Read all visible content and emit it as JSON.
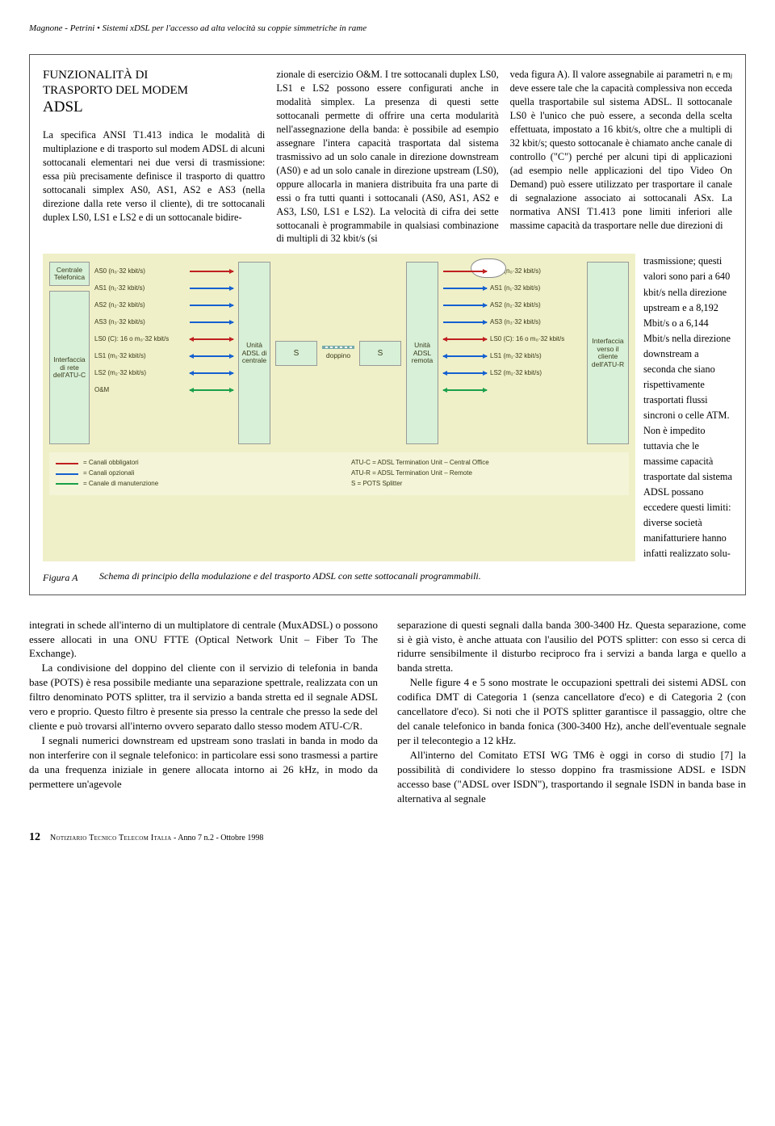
{
  "running_head": "Magnone - Petrini • Sistemi xDSL per l'accesso ad alta velocità su coppie simmetriche in rame",
  "sidebar": {
    "title_line1": "FUNZIONALITÀ DI",
    "title_line2": "TRASPORTO DEL MODEM",
    "title_line3": "ADSL"
  },
  "feature": {
    "col1": "La specifica ANSI T1.413 indica le modalità di multiplazione e di trasporto sul modem ADSL di alcuni sottocanali elementari nei due versi di trasmissione: essa più precisamente definisce il trasporto di quattro sottocanali simplex AS0, AS1, AS2 e AS3 (nella direzione dalla rete verso il cliente), di tre sottocanali duplex LS0, LS1 e LS2 e di un sottocanale bidire-",
    "col2": "zionale di esercizio O&M. I tre sottocanali duplex LS0, LS1 e LS2 possono essere configurati anche in modalità simplex. La presenza di questi sette sottocanali permette di offrire una certa modularità nell'assegnazione della banda: è possibile ad esempio assegnare l'intera capacità trasportata dal sistema trasmissivo ad un solo canale in direzione downstream (AS0) e ad un solo canale in direzione upstream (LS0), oppure allocarla in maniera distribuita fra una parte di essi o fra tutti quanti i sottocanali (AS0, AS1, AS2 e AS3, LS0, LS1 e LS2). La velocità di cifra dei sette sottocanali è programmabile in qualsiasi combinazione di multipli di 32 kbit/s (si",
    "col3": "veda figura A). Il valore assegnabile ai parametri nᵢ e mⱼ deve essere tale che la capacità complessiva non ecceda quella trasportabile sul sistema ADSL. Il sottocanale LS0 è l'unico che può essere, a seconda della scelta effettuata, impostato a 16 kbit/s, oltre che a multipli di 32 kbit/s; questo sottocanale è chiamato anche canale di controllo (\"C\") perché per alcuni tipi di applicazioni (ad esempio nelle applicazioni del tipo Video On Demand) può essere utilizzato per trasportare il canale di segnalazione associato ai sottocanali ASx.\nLa normativa ANSI T1.413 pone limiti inferiori alle massime capacità da trasportare nelle due direzioni di",
    "narrow": "trasmissione; questi valori sono pari a 640 kbit/s nella direzione upstream e a 8,192 Mbit/s o a 6,144 Mbit/s nella direzione downstream a seconda che siano rispettivamente trasportati flussi sincroni o celle ATM.\nNon è impedito tuttavia che le massime capacità trasportate dal sistema ADSL possano eccedere questi limiti: diverse società manifatturiere hanno infatti realizzato solu-"
  },
  "figure": {
    "label": "Figura A",
    "caption": "Schema di principio della modulazione e del trasporto ADSL con sette sottocanali programmabili."
  },
  "diagram": {
    "bg_color": "#eff0c8",
    "box_bg": "#d7f0d7",
    "colors": {
      "mandatory": "#c02020",
      "optional": "#1560d0",
      "oam": "#1aa04a"
    },
    "left_box_top": "Centrale Telefonica",
    "left_box_side": "Interfaccia di rete dell'ATU-C",
    "unit_c": "Unità ADSL di centrale",
    "s_label": "S",
    "doppino": "doppino",
    "unit_r": "Unità ADSL remota",
    "right_box_side": "Interfaccia verso il cliente dell'ATU-R",
    "channels_left": [
      {
        "label": "AS0 (n₀·32 kbit/s)",
        "color": "mandatory",
        "dir": "r"
      },
      {
        "label": "AS1 (n₁·32 kbit/s)",
        "color": "optional",
        "dir": "r"
      },
      {
        "label": "AS2 (n₂·32 kbit/s)",
        "color": "optional",
        "dir": "r"
      },
      {
        "label": "AS3 (n₃·32 kbit/s)",
        "color": "optional",
        "dir": "r"
      },
      {
        "label": "LS0 (C): 16 o m₀·32 kbit/s",
        "color": "mandatory",
        "dir": "b"
      },
      {
        "label": "LS1 (m₁·32 kbit/s)",
        "color": "optional",
        "dir": "b"
      },
      {
        "label": "LS2 (m₂·32 kbit/s)",
        "color": "optional",
        "dir": "b"
      },
      {
        "label": "O&M",
        "color": "oam",
        "dir": "b"
      }
    ],
    "channels_right": [
      {
        "label": "AS0 (n₀·32 kbit/s)",
        "color": "mandatory",
        "dir": "r"
      },
      {
        "label": "AS1 (n₁·32 kbit/s)",
        "color": "optional",
        "dir": "r"
      },
      {
        "label": "AS2 (n₂·32 kbit/s)",
        "color": "optional",
        "dir": "r"
      },
      {
        "label": "AS3 (n₃·32 kbit/s)",
        "color": "optional",
        "dir": "r"
      },
      {
        "label": "LS0 (C): 16 o m₀·32 kbit/s",
        "color": "mandatory",
        "dir": "b"
      },
      {
        "label": "LS1 (m₁·32 kbit/s)",
        "color": "optional",
        "dir": "b"
      },
      {
        "label": "LS2 (m₂·32 kbit/s)",
        "color": "optional",
        "dir": "b"
      },
      {
        "label": "",
        "color": "oam",
        "dir": "b"
      }
    ],
    "legend_left": [
      {
        "swatch": "mandatory",
        "text": "= Canali obbligatori"
      },
      {
        "swatch": "optional",
        "text": "= Canali opzionali"
      },
      {
        "swatch": "oam",
        "text": "= Canale di manutenzione"
      }
    ],
    "legend_right": [
      {
        "text": "ATU-C = ADSL Termination Unit – Central Office"
      },
      {
        "text": "ATU-R = ADSL Termination Unit – Remote"
      },
      {
        "text": "S       = POTS Splitter"
      }
    ]
  },
  "body": {
    "left": [
      "integrati in schede all'interno di un multiplatore di centrale (MuxADSL) o possono essere allocati in una ONU FTTE (Optical Network Unit – Fiber To The Exchange).",
      "La condivisione del doppino del cliente con il servizio di telefonia in banda base (POTS) è resa possibile mediante una separazione spettrale, realizzata con un filtro denominato POTS splitter, tra il servizio a banda stretta ed il segnale ADSL vero e proprio. Questo filtro è presente sia presso la centrale che presso la sede del cliente e può trovarsi all'interno ovvero separato dallo stesso modem ATU-C/R.",
      "I segnali numerici downstream ed upstream sono traslati in banda in modo da non interferire con il segnale telefonico: in particolare essi sono trasmessi a partire da una frequenza iniziale in genere allocata intorno ai 26 kHz, in modo da permettere un'agevole"
    ],
    "right": [
      "separazione di questi segnali dalla banda 300-3400 Hz. Questa separazione, come si è già visto, è anche attuata con l'ausilio del POTS splitter: con esso si cerca di ridurre sensibilmente il disturbo reciproco fra i servizi a banda larga e quello a banda stretta.",
      "Nelle figure 4 e 5 sono mostrate le occupazioni spettrali dei sistemi ADSL con codifica DMT di Categoria 1 (senza cancellatore d'eco) e di Categoria 2 (con cancellatore d'eco). Si noti che il POTS splitter garantisce il passaggio, oltre che del canale telefonico in banda fonica (300-3400 Hz), anche dell'eventuale segnale per il telecontegio a 12 kHz.",
      "All'interno del Comitato ETSI WG TM6 è oggi in corso di studio [7] la possibilità di condividere lo stesso doppino fra trasmissione ADSL e ISDN accesso base (\"ADSL over ISDN\"), trasportando il segnale ISDN in banda base in alternativa al segnale"
    ]
  },
  "footer": {
    "page": "12",
    "text": "Notiziario Tecnico Telecom Italia",
    "tail": "- Anno 7 n.2 - Ottobre 1998"
  }
}
